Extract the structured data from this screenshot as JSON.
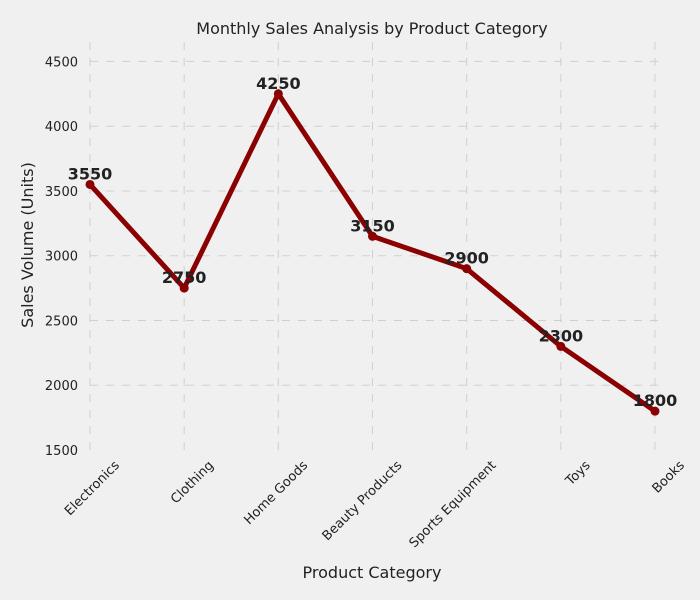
{
  "chart_data": {
    "type": "line",
    "title": "Monthly Sales Analysis by Product Category",
    "xlabel": "Product Category",
    "ylabel": "Sales Volume (Units)",
    "categories": [
      "Electronics",
      "Clothing",
      "Home Goods",
      "Beauty Products",
      "Sports Equipment",
      "Toys",
      "Books"
    ],
    "series": [
      {
        "values": [
          3550,
          2750,
          4250,
          3150,
          2900,
          2300,
          1800
        ]
      }
    ],
    "ylim": [
      1500,
      4650
    ],
    "yticks": [
      1500,
      2000,
      2500,
      3000,
      3500,
      4000,
      4500
    ],
    "grid": true,
    "line_color": "#8b0000",
    "background": "#f0f0f0"
  }
}
